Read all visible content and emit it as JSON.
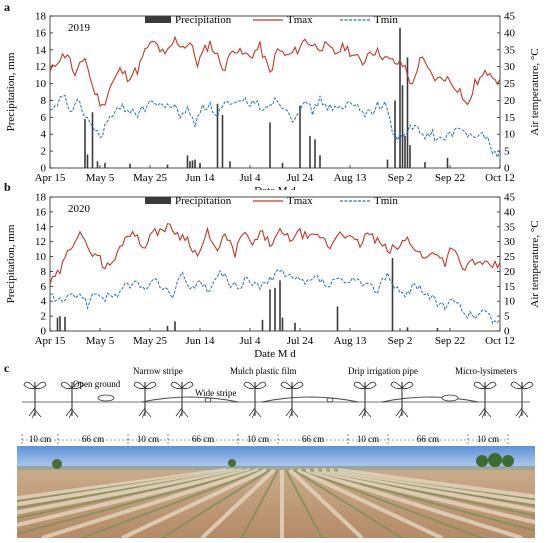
{
  "panels": {
    "a": "a",
    "b": "b",
    "c": "c"
  },
  "chart_data": [
    {
      "type": "bar+line",
      "panel": "a",
      "year": "2019",
      "xlabel": "Date  M d",
      "ylabel_left": "Precipitation, mm",
      "ylabel_right": "Air temperature, °C",
      "legend": [
        "Precipitation",
        "Tmax",
        "Tmin"
      ],
      "legend_position": "top",
      "x_ticks": [
        "Apr 15",
        "May 5",
        "May 25",
        "Jun 14",
        "Jul 4",
        "Jul 24",
        "Aug 13",
        "Sep 2",
        "Sep 22",
        "Oct 12"
      ],
      "ylim_left": [
        0,
        18
      ],
      "ylim_right": [
        0,
        45
      ],
      "y_ticks_left": [
        0,
        2,
        4,
        6,
        8,
        10,
        12,
        14,
        16,
        18
      ],
      "y_ticks_right": [
        0,
        5,
        10,
        15,
        20,
        25,
        30,
        35,
        40,
        45
      ],
      "x_start_day": 0,
      "x_end_day": 180,
      "precipitation": [
        {
          "day": 14,
          "value": 5.8
        },
        {
          "day": 15,
          "value": 1.6
        },
        {
          "day": 17,
          "value": 6.6
        },
        {
          "day": 19,
          "value": 0.8
        },
        {
          "day": 22,
          "value": 0.6
        },
        {
          "day": 32,
          "value": 0.5
        },
        {
          "day": 47,
          "value": 0.4
        },
        {
          "day": 55,
          "value": 1.5
        },
        {
          "day": 56,
          "value": 0.8
        },
        {
          "day": 57,
          "value": 0.9
        },
        {
          "day": 58,
          "value": 1.0
        },
        {
          "day": 60,
          "value": 0.6
        },
        {
          "day": 67,
          "value": 7.6
        },
        {
          "day": 69,
          "value": 6.3
        },
        {
          "day": 72,
          "value": 0.8
        },
        {
          "day": 88,
          "value": 5.4
        },
        {
          "day": 93,
          "value": 0.6
        },
        {
          "day": 100,
          "value": 7.4
        },
        {
          "day": 104,
          "value": 3.8
        },
        {
          "day": 106,
          "value": 3.4
        },
        {
          "day": 108,
          "value": 1.5
        },
        {
          "day": 135,
          "value": 1.0
        },
        {
          "day": 138,
          "value": 8.0
        },
        {
          "day": 140,
          "value": 16.6
        },
        {
          "day": 141,
          "value": 9.8
        },
        {
          "day": 142,
          "value": 3.8
        },
        {
          "day": 143,
          "value": 13.1
        },
        {
          "day": 144,
          "value": 2.7
        },
        {
          "day": 150,
          "value": 0.7
        },
        {
          "day": 159,
          "value": 1.2
        }
      ],
      "tmax_keyframes": [
        [
          0,
          28
        ],
        [
          3,
          32
        ],
        [
          7,
          34
        ],
        [
          10,
          27
        ],
        [
          14,
          33
        ],
        [
          17,
          24
        ],
        [
          21,
          18
        ],
        [
          24,
          24
        ],
        [
          28,
          29
        ],
        [
          31,
          27
        ],
        [
          35,
          29
        ],
        [
          39,
          36
        ],
        [
          42,
          37
        ],
        [
          46,
          33
        ],
        [
          50,
          38
        ],
        [
          53,
          36
        ],
        [
          56,
          37
        ],
        [
          59,
          31
        ],
        [
          62,
          35
        ],
        [
          64,
          37
        ],
        [
          67,
          33
        ],
        [
          70,
          29
        ],
        [
          73,
          36
        ],
        [
          76,
          34
        ],
        [
          80,
          33
        ],
        [
          84,
          36
        ],
        [
          88,
          28
        ],
        [
          91,
          35
        ],
        [
          95,
          33
        ],
        [
          99,
          35
        ],
        [
          102,
          38
        ],
        [
          106,
          36
        ],
        [
          110,
          36
        ],
        [
          114,
          34
        ],
        [
          118,
          36
        ],
        [
          122,
          33
        ],
        [
          125,
          31
        ],
        [
          128,
          35
        ],
        [
          132,
          34
        ],
        [
          135,
          32
        ],
        [
          139,
          31
        ],
        [
          142,
          30
        ],
        [
          145,
          24
        ],
        [
          148,
          33
        ],
        [
          152,
          28
        ],
        [
          155,
          26
        ],
        [
          158,
          27
        ],
        [
          161,
          25
        ],
        [
          164,
          23
        ],
        [
          167,
          18
        ],
        [
          170,
          25
        ],
        [
          173,
          27
        ],
        [
          176,
          29
        ],
        [
          180,
          25
        ]
      ],
      "tmin_keyframes": [
        [
          0,
          16
        ],
        [
          3,
          18
        ],
        [
          5,
          22
        ],
        [
          8,
          17
        ],
        [
          11,
          19
        ],
        [
          14,
          16
        ],
        [
          17,
          12
        ],
        [
          20,
          9
        ],
        [
          23,
          14
        ],
        [
          26,
          16
        ],
        [
          29,
          18
        ],
        [
          33,
          17
        ],
        [
          36,
          16
        ],
        [
          40,
          20
        ],
        [
          44,
          18
        ],
        [
          48,
          19
        ],
        [
          52,
          16
        ],
        [
          55,
          17
        ],
        [
          58,
          13
        ],
        [
          61,
          19
        ],
        [
          64,
          18
        ],
        [
          67,
          16
        ],
        [
          70,
          19
        ],
        [
          74,
          18
        ],
        [
          78,
          20
        ],
        [
          82,
          19
        ],
        [
          86,
          18
        ],
        [
          89,
          20
        ],
        [
          93,
          19
        ],
        [
          97,
          15
        ],
        [
          101,
          19
        ],
        [
          105,
          17
        ],
        [
          108,
          20
        ],
        [
          112,
          18
        ],
        [
          116,
          17
        ],
        [
          120,
          19
        ],
        [
          124,
          18
        ],
        [
          127,
          16
        ],
        [
          130,
          18
        ],
        [
          134,
          19
        ],
        [
          137,
          11
        ],
        [
          140,
          9
        ],
        [
          143,
          11
        ],
        [
          146,
          12
        ],
        [
          150,
          9
        ],
        [
          153,
          10
        ],
        [
          156,
          8
        ],
        [
          160,
          10
        ],
        [
          164,
          11
        ],
        [
          168,
          10
        ],
        [
          172,
          11
        ],
        [
          175,
          8
        ],
        [
          178,
          4
        ],
        [
          180,
          5
        ]
      ],
      "series_colors": {
        "precipitation": "#3a3a3a",
        "tmax": "#c0392b",
        "tmin": "#2e6dbb"
      }
    },
    {
      "type": "bar+line",
      "panel": "b",
      "year": "2020",
      "xlabel": "Date  M d",
      "ylabel_left": "Precipitation, mm",
      "ylabel_right": "Air temperature, °C",
      "legend": [
        "Precipitation",
        "Tmax",
        "Tmin"
      ],
      "legend_position": "top",
      "x_ticks": [
        "Apr 15",
        "May 5",
        "May 25",
        "Jun 14",
        "Jul 4",
        "Jul 24",
        "Aug 13",
        "Sep 2",
        "Sep 22",
        "Oct 12"
      ],
      "ylim_left": [
        0,
        18
      ],
      "ylim_right": [
        0,
        45
      ],
      "y_ticks_left": [
        0,
        2,
        4,
        6,
        8,
        10,
        12,
        14,
        16,
        18
      ],
      "y_ticks_right": [
        0,
        5,
        10,
        15,
        20,
        25,
        30,
        35,
        40,
        45
      ],
      "x_start_day": 0,
      "x_end_day": 180,
      "precipitation": [
        {
          "day": 3,
          "value": 1.8
        },
        {
          "day": 4,
          "value": 2.0
        },
        {
          "day": 6,
          "value": 1.9
        },
        {
          "day": 47,
          "value": 0.7
        },
        {
          "day": 50,
          "value": 1.3
        },
        {
          "day": 85,
          "value": 1.5
        },
        {
          "day": 88,
          "value": 5.6
        },
        {
          "day": 90,
          "value": 5.8
        },
        {
          "day": 92,
          "value": 6.8
        },
        {
          "day": 93,
          "value": 1.8
        },
        {
          "day": 98,
          "value": 1.1
        },
        {
          "day": 115,
          "value": 3.3
        },
        {
          "day": 137,
          "value": 9.8
        },
        {
          "day": 143,
          "value": 0.5
        },
        {
          "day": 155,
          "value": 0.4
        }
      ],
      "tmax_keyframes": [
        [
          0,
          16
        ],
        [
          4,
          20
        ],
        [
          8,
          28
        ],
        [
          12,
          34
        ],
        [
          15,
          27
        ],
        [
          19,
          26
        ],
        [
          22,
          21
        ],
        [
          26,
          24
        ],
        [
          29,
          30
        ],
        [
          33,
          34
        ],
        [
          37,
          28
        ],
        [
          40,
          32
        ],
        [
          44,
          34
        ],
        [
          48,
          35
        ],
        [
          52,
          32
        ],
        [
          55,
          31
        ],
        [
          59,
          25
        ],
        [
          63,
          33
        ],
        [
          66,
          27
        ],
        [
          70,
          32
        ],
        [
          74,
          26
        ],
        [
          77,
          33
        ],
        [
          81,
          29
        ],
        [
          85,
          33
        ],
        [
          88,
          29
        ],
        [
          92,
          33
        ],
        [
          96,
          31
        ],
        [
          100,
          33
        ],
        [
          104,
          31
        ],
        [
          108,
          32
        ],
        [
          112,
          28
        ],
        [
          116,
          34
        ],
        [
          120,
          31
        ],
        [
          124,
          29
        ],
        [
          127,
          33
        ],
        [
          131,
          30
        ],
        [
          135,
          27
        ],
        [
          139,
          28
        ],
        [
          143,
          31
        ],
        [
          147,
          27
        ],
        [
          150,
          24
        ],
        [
          154,
          27
        ],
        [
          158,
          23
        ],
        [
          161,
          29
        ],
        [
          165,
          20
        ],
        [
          169,
          24
        ],
        [
          172,
          22
        ],
        [
          176,
          22
        ],
        [
          180,
          22
        ]
      ],
      "tmin_keyframes": [
        [
          0,
          12
        ],
        [
          4,
          10
        ],
        [
          8,
          11
        ],
        [
          12,
          13
        ],
        [
          15,
          9
        ],
        [
          19,
          13
        ],
        [
          22,
          11
        ],
        [
          26,
          12
        ],
        [
          30,
          15
        ],
        [
          34,
          16
        ],
        [
          37,
          14
        ],
        [
          41,
          17
        ],
        [
          45,
          15
        ],
        [
          49,
          12
        ],
        [
          53,
          19
        ],
        [
          57,
          14
        ],
        [
          61,
          16
        ],
        [
          64,
          13
        ],
        [
          68,
          20
        ],
        [
          72,
          16
        ],
        [
          76,
          14
        ],
        [
          79,
          18
        ],
        [
          83,
          15
        ],
        [
          87,
          16
        ],
        [
          91,
          20
        ],
        [
          95,
          18
        ],
        [
          99,
          17
        ],
        [
          103,
          16
        ],
        [
          107,
          18
        ],
        [
          111,
          15
        ],
        [
          115,
          17
        ],
        [
          119,
          16
        ],
        [
          123,
          17
        ],
        [
          127,
          15
        ],
        [
          131,
          14
        ],
        [
          135,
          20
        ],
        [
          138,
          14
        ],
        [
          142,
          12
        ],
        [
          146,
          16
        ],
        [
          150,
          13
        ],
        [
          154,
          10
        ],
        [
          158,
          8
        ],
        [
          162,
          10
        ],
        [
          166,
          6
        ],
        [
          170,
          5
        ],
        [
          174,
          7
        ],
        [
          177,
          3
        ],
        [
          180,
          4
        ]
      ],
      "series_colors": {
        "precipitation": "#3a3a3a",
        "tmax": "#c0392b",
        "tmin": "#2e6dbb"
      }
    }
  ],
  "diagram": {
    "labels": [
      "Open ground",
      "Narrow stripe",
      "Mulch plastic film",
      "Drip irrigation pipe",
      "Micro-lysimeters",
      "Wide stripe"
    ],
    "spacing": [
      "10 cm",
      "66 cm",
      "10 cm",
      "66 cm",
      "10 cm",
      "66 cm",
      "10 cm",
      "66 cm",
      "10 cm"
    ]
  }
}
